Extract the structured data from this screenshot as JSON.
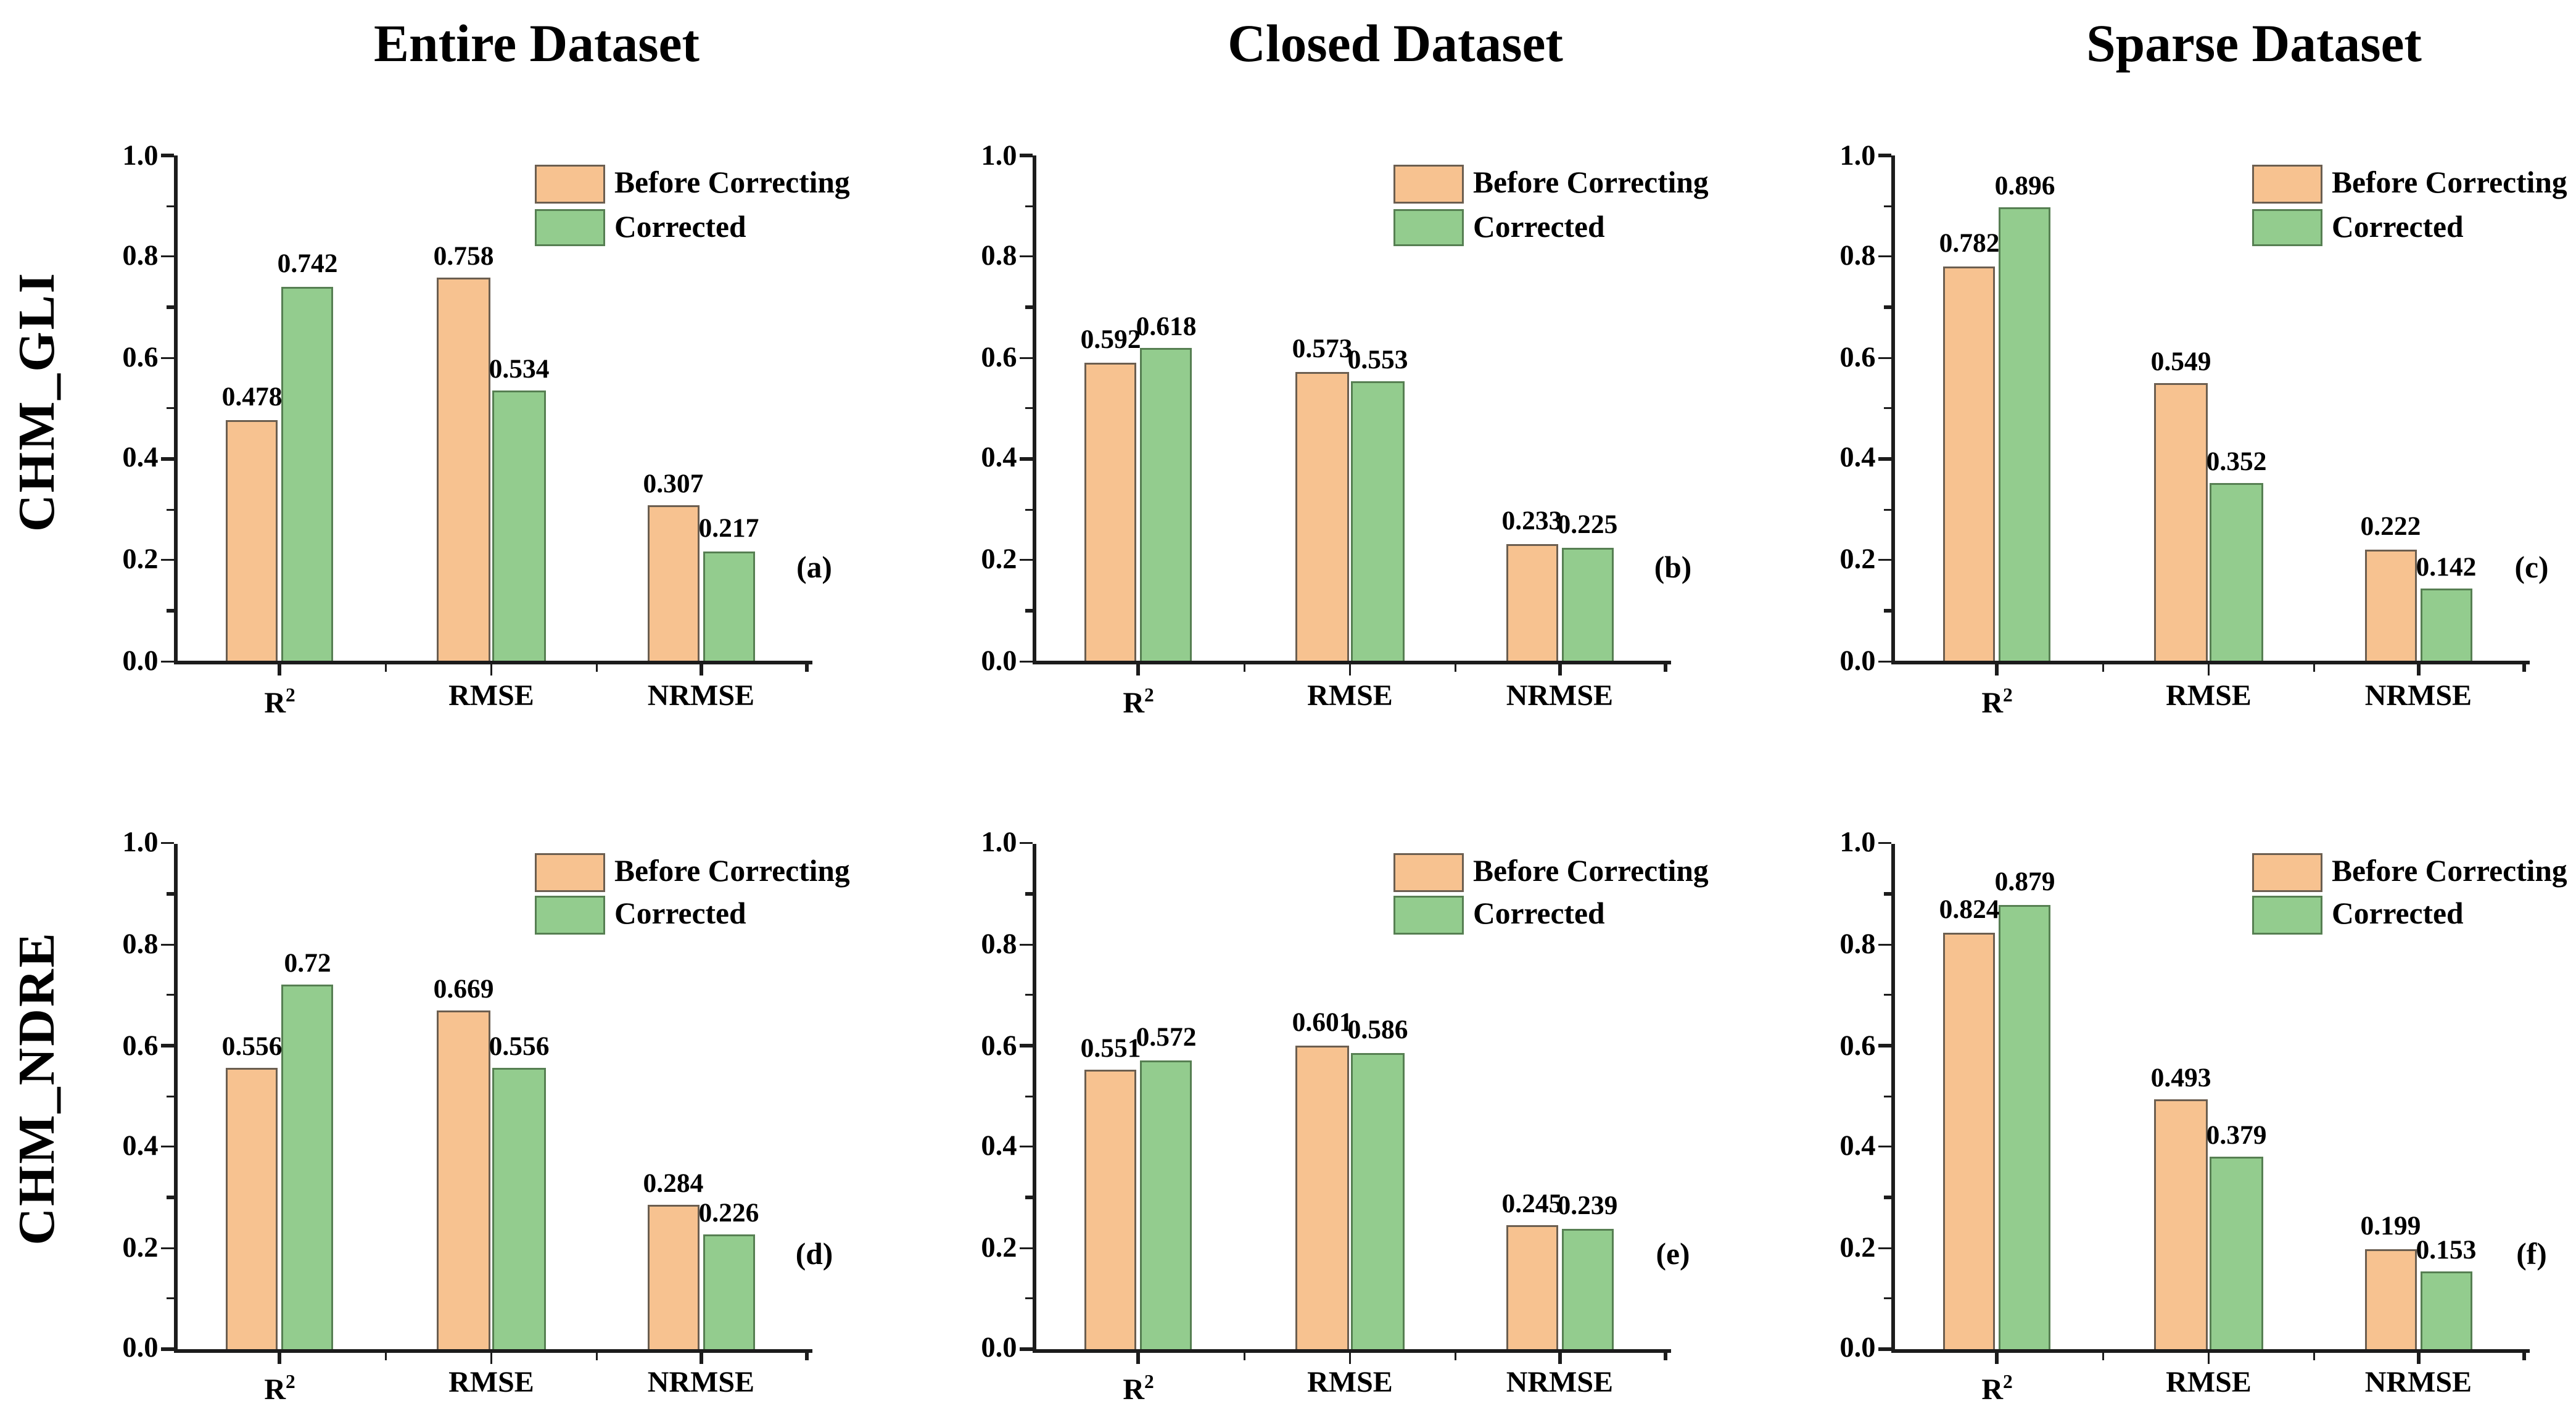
{
  "figure": {
    "column_titles": [
      "Entire Dataset",
      "Closed Dataset",
      "Sparse Dataset"
    ],
    "row_labels": [
      "CHM_GLI",
      "CHM_NDRE"
    ],
    "legend_labels": [
      "Before Correcting",
      "Corrected"
    ],
    "categories": [
      {
        "text": "R",
        "sup": "2"
      },
      {
        "text": "RMSE",
        "sup": ""
      },
      {
        "text": "NRMSE",
        "sup": ""
      }
    ],
    "colors": {
      "before_fill": "#F7C290",
      "before_edge": "#6B5E50",
      "corrected_fill": "#93CC8E",
      "corrected_edge": "#567F52",
      "axis": "#1C1C1C",
      "text": "#000000",
      "background": "#FFFFFF"
    },
    "ytick_labels": [
      "0.0",
      "0.2",
      "0.4",
      "0.6",
      "0.8",
      "1.0"
    ]
  },
  "chart_data": [
    {
      "type": "bar",
      "panel_label": "(a)",
      "row": "CHM_GLI",
      "column": "Entire Dataset",
      "categories": [
        "R2",
        "RMSE",
        "NRMSE"
      ],
      "series": [
        {
          "name": "Before Correcting",
          "values": [
            0.478,
            0.758,
            0.307
          ]
        },
        {
          "name": "Corrected",
          "values": [
            0.742,
            0.534,
            0.217
          ]
        }
      ],
      "ylim": [
        0,
        1
      ],
      "ytick_step": 0.2,
      "grid": false,
      "legend_position": "top-right"
    },
    {
      "type": "bar",
      "panel_label": "(b)",
      "row": "CHM_GLI",
      "column": "Closed Dataset",
      "categories": [
        "R2",
        "RMSE",
        "NRMSE"
      ],
      "series": [
        {
          "name": "Before Correcting",
          "values": [
            0.592,
            0.573,
            0.233
          ]
        },
        {
          "name": "Corrected",
          "values": [
            0.618,
            0.553,
            0.225
          ]
        }
      ],
      "ylim": [
        0,
        1
      ],
      "ytick_step": 0.2,
      "grid": false,
      "legend_position": "top-right"
    },
    {
      "type": "bar",
      "panel_label": "(c)",
      "row": "CHM_GLI",
      "column": "Sparse Dataset",
      "categories": [
        "R2",
        "RMSE",
        "NRMSE"
      ],
      "series": [
        {
          "name": "Before Correcting",
          "values": [
            0.782,
            0.549,
            0.222
          ]
        },
        {
          "name": "Corrected",
          "values": [
            0.896,
            0.352,
            0.142
          ]
        }
      ],
      "ylim": [
        0,
        1
      ],
      "ytick_step": 0.2,
      "grid": false,
      "legend_position": "top-right"
    },
    {
      "type": "bar",
      "panel_label": "(d)",
      "row": "CHM_NDRE",
      "column": "Entire Dataset",
      "categories": [
        "R2",
        "RMSE",
        "NRMSE"
      ],
      "series": [
        {
          "name": "Before Correcting",
          "values": [
            0.556,
            0.669,
            0.284
          ]
        },
        {
          "name": "Corrected",
          "values": [
            0.72,
            0.556,
            0.226
          ]
        }
      ],
      "ylim": [
        0,
        1
      ],
      "ytick_step": 0.2,
      "grid": false,
      "legend_position": "top-right"
    },
    {
      "type": "bar",
      "panel_label": "(e)",
      "row": "CHM_NDRE",
      "column": "Closed Dataset",
      "categories": [
        "R2",
        "RMSE",
        "NRMSE"
      ],
      "series": [
        {
          "name": "Before Correcting",
          "values": [
            0.551,
            0.601,
            0.245
          ]
        },
        {
          "name": "Corrected",
          "values": [
            0.572,
            0.586,
            0.239
          ]
        }
      ],
      "ylim": [
        0,
        1
      ],
      "ytick_step": 0.2,
      "grid": false,
      "legend_position": "top-right"
    },
    {
      "type": "bar",
      "panel_label": "(f)",
      "row": "CHM_NDRE",
      "column": "Sparse Dataset",
      "categories": [
        "R2",
        "RMSE",
        "NRMSE"
      ],
      "series": [
        {
          "name": "Before Correcting",
          "values": [
            0.824,
            0.493,
            0.199
          ]
        },
        {
          "name": "Corrected",
          "values": [
            0.879,
            0.379,
            0.153
          ]
        }
      ],
      "ylim": [
        0,
        1
      ],
      "ytick_step": 0.2,
      "grid": false,
      "legend_position": "top-right"
    }
  ]
}
